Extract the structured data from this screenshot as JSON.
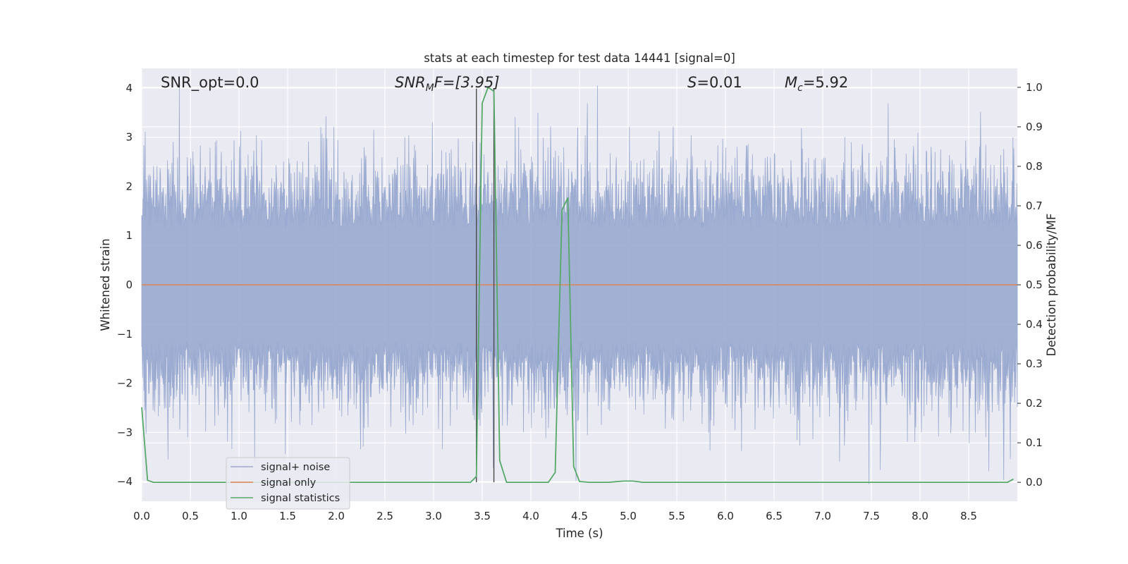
{
  "chart_data": {
    "type": "line",
    "title": "stats at each timestep for test data 14441 [signal=0]",
    "xlabel": "Time (s)",
    "ylabel": "Whitened strain",
    "y2label": "Detection probability/MF",
    "xlim": [
      0.0,
      9.0
    ],
    "ylim": [
      -4.4,
      4.4
    ],
    "y2lim": [
      -0.048,
      1.048
    ],
    "grid": true,
    "x_ticks": [
      "0.0",
      "0.5",
      "1.0",
      "1.5",
      "2.0",
      "2.5",
      "3.0",
      "3.5",
      "4.0",
      "4.5",
      "5.0",
      "5.5",
      "6.0",
      "6.5",
      "7.0",
      "7.5",
      "8.0",
      "8.5"
    ],
    "y_ticks": [
      "4",
      "3",
      "2",
      "1",
      "0",
      "−1",
      "−2",
      "−3",
      "−4"
    ],
    "y2_ticks": [
      "1.0",
      "0.9",
      "0.8",
      "0.7",
      "0.6",
      "0.5",
      "0.4",
      "0.3",
      "0.2",
      "0.1",
      "0.0"
    ],
    "legend_position": "lower-left",
    "annotations": {
      "snr_opt": "SNR_opt=0.0",
      "snr_mf_main": "SNR",
      "snr_mf_sub": "M",
      "snr_mf_tail": "F=[3.95]",
      "s_var": "S",
      "s_val": "=0.01",
      "mc_var": "M",
      "mc_sub": "c",
      "mc_val": "=5.92"
    },
    "vertical_lines_x": [
      3.44,
      3.62
    ],
    "series": [
      {
        "name": "signal+ noise",
        "color": "#9aaad0",
        "style": "whitened noise, amplitude approximately ±2, occasional peaks to ±4",
        "envelope_x": [
          0.0,
          9.0
        ],
        "envelope_y": [
          -2.0,
          2.0
        ]
      },
      {
        "name": "signal only",
        "color": "#dd8452",
        "x": [
          0.0,
          9.0
        ],
        "y": [
          0.0,
          0.0
        ]
      },
      {
        "name": "signal statistics",
        "color": "#55a868",
        "axis": "right",
        "x": [
          0.0,
          0.06,
          0.12,
          0.2,
          1.0,
          2.0,
          3.0,
          3.38,
          3.44,
          3.5,
          3.56,
          3.62,
          3.68,
          3.75,
          3.85,
          4.0,
          4.18,
          4.25,
          4.32,
          4.38,
          4.44,
          4.5,
          4.6,
          4.8,
          4.95,
          5.05,
          5.15,
          6.0,
          7.0,
          8.0,
          8.9,
          8.96
        ],
        "y": [
          0.19,
          0.005,
          0.0,
          0.0,
          0.0,
          0.0,
          0.0,
          0.0,
          0.015,
          0.96,
          1.0,
          0.99,
          0.055,
          0.0,
          0.0,
          0.0,
          0.0,
          0.025,
          0.69,
          0.72,
          0.04,
          0.002,
          0.0,
          0.0,
          0.003,
          0.003,
          0.0,
          0.0,
          0.0,
          0.0,
          0.0,
          0.008
        ]
      }
    ]
  }
}
